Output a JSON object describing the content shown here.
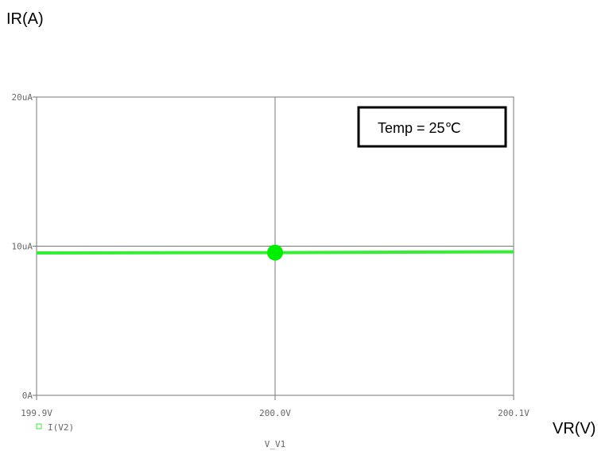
{
  "chart_data": {
    "type": "line",
    "outer_ylabel": "IR(A)",
    "outer_xlabel": "VR(V)",
    "xlabel": "V_V1",
    "xlim": [
      199.9,
      200.1
    ],
    "ylim": [
      0,
      20
    ],
    "x_ticks": [
      199.9,
      200.0,
      200.1
    ],
    "x_tick_labels": [
      "199.9V",
      "200.0V",
      "200.1V"
    ],
    "y_ticks": [
      0,
      10,
      20
    ],
    "y_tick_labels": [
      "0A",
      "10uA",
      "20uA"
    ],
    "grid": true,
    "legend_position": "bottom-left",
    "series": [
      {
        "name": "I(V2)",
        "color": "#33ee33",
        "x": [
          199.9,
          200.0,
          200.1
        ],
        "y": [
          9.55,
          9.57,
          9.62
        ]
      }
    ],
    "marker": {
      "x": 200.0,
      "y": 9.57,
      "color": "#00ee00"
    },
    "annotation": "Temp = 25℃"
  }
}
